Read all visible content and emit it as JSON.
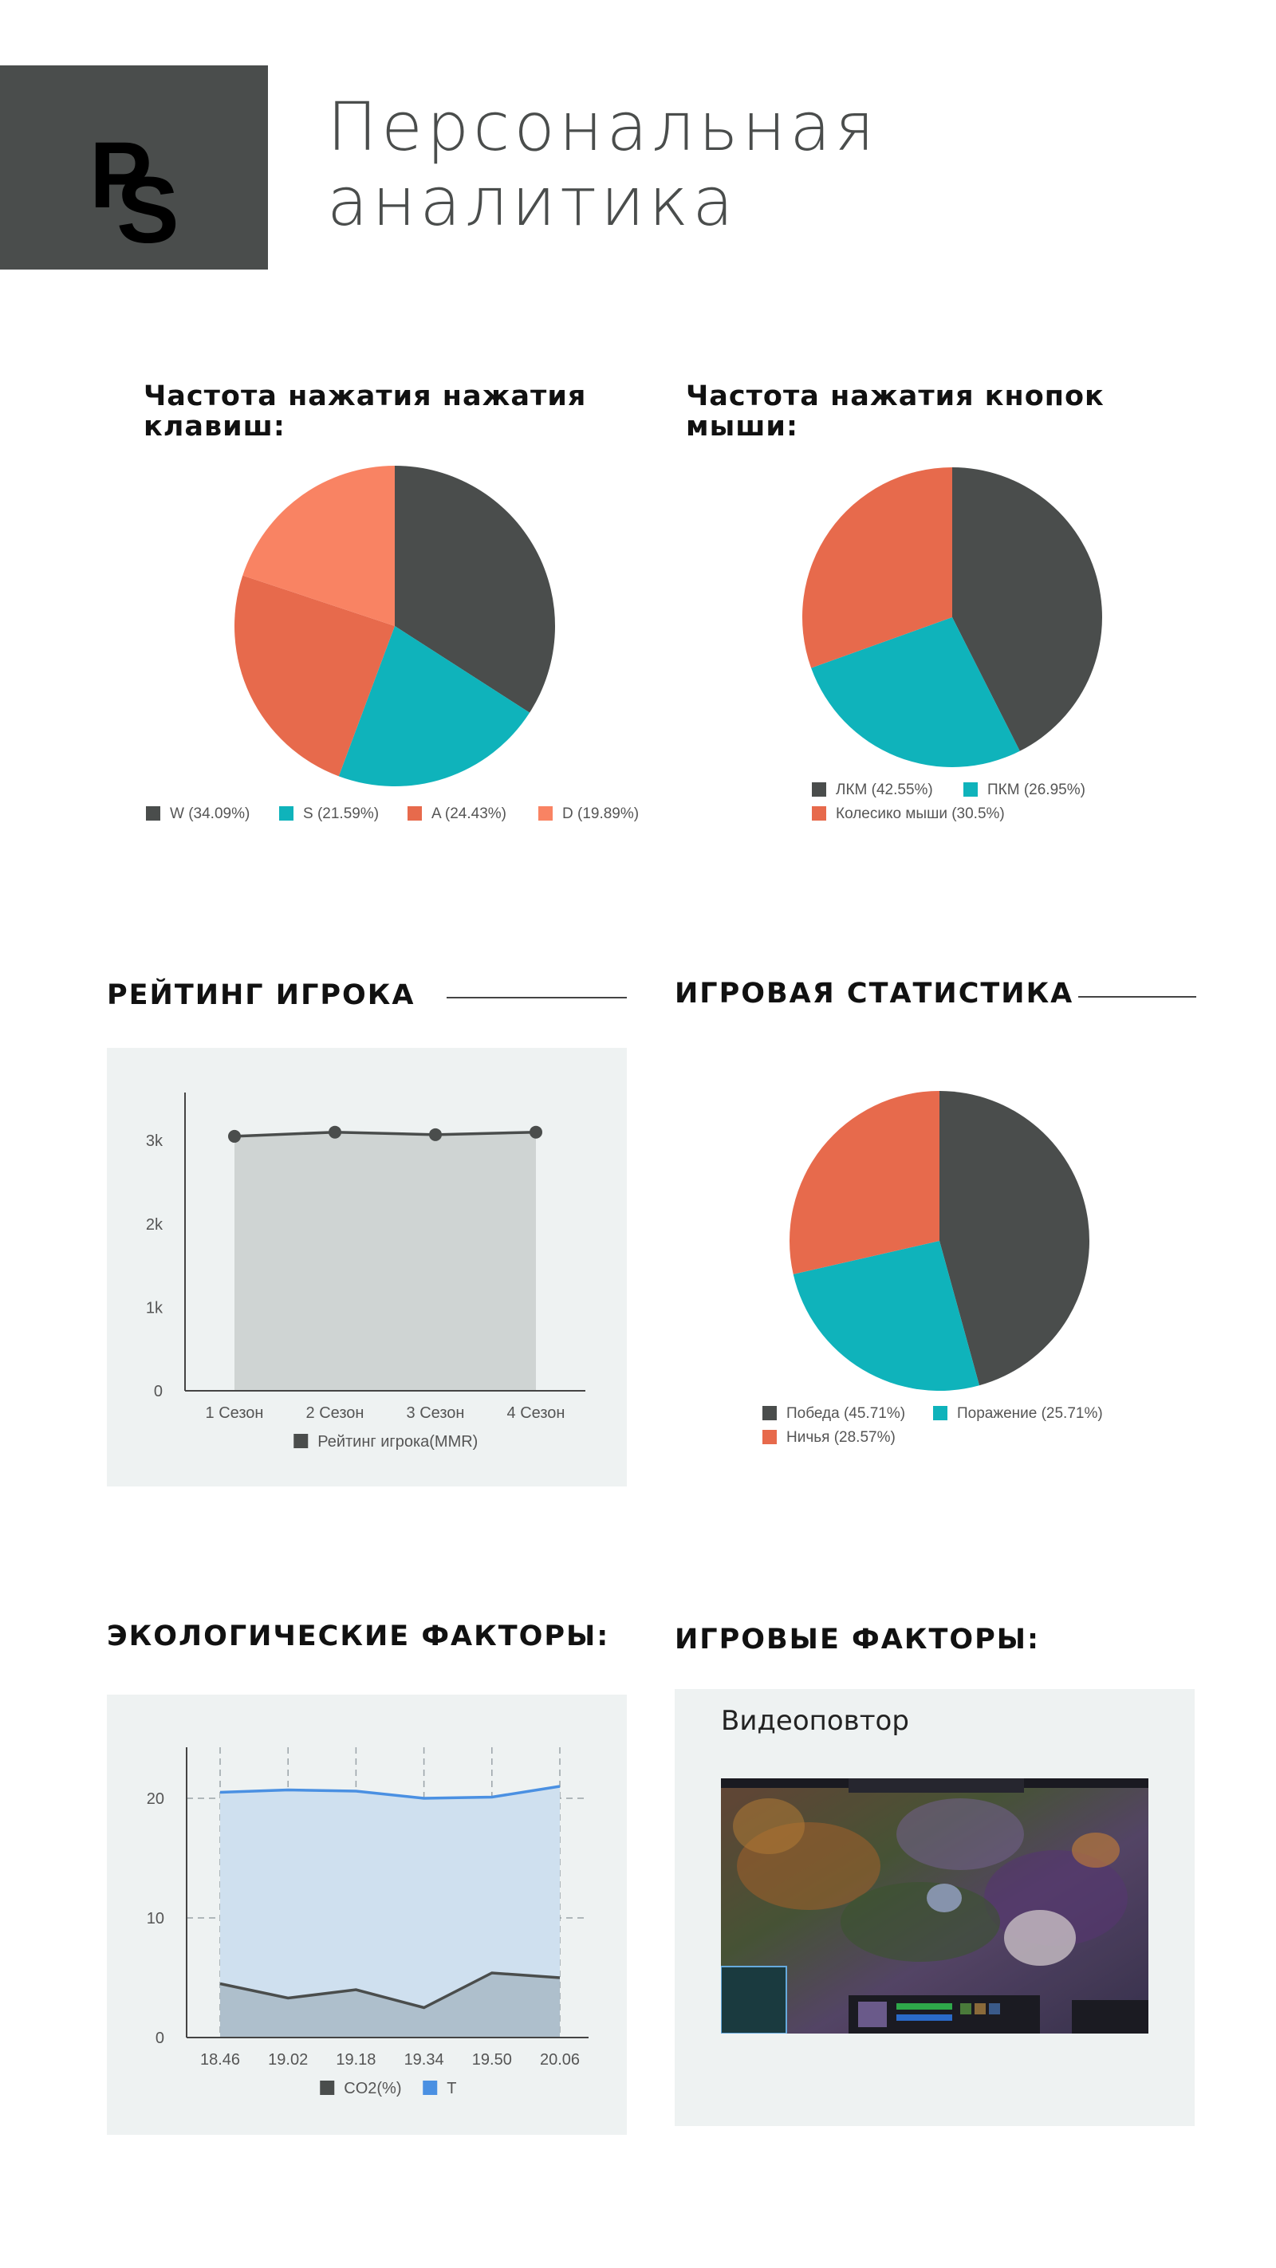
{
  "header": {
    "logo_text": "PS",
    "title_line1": "Персональная",
    "title_line2": "аналитика"
  },
  "colors": {
    "dark": "#4a4d4c",
    "teal": "#0fb3bb",
    "coral": "#e76a4c",
    "salmon": "#f98363",
    "blue": "#4a90e2",
    "panel": "#eef2f2"
  },
  "sections": {
    "player_rating": "РЕЙТИНГ ИГРОКА",
    "game_stats": "ИГРОВАЯ СТАТИСТИКА",
    "eco_factors": "ЭКОЛОГИЧЕСКИЕ ФАКТОРЫ:",
    "game_factors": "ИГРОВЫЕ ФАКТОРЫ:"
  },
  "video": {
    "label": "Видеоповтор",
    "thumbnail_icon": "game-replay-thumbnail"
  },
  "chart_data": [
    {
      "id": "keys",
      "type": "pie",
      "title": "Частота нажатия нажатия клавиш:",
      "title_lines": [
        "Частота нажатия нажатия",
        "клавиш:"
      ],
      "slices": [
        {
          "label": "W (34.09%)",
          "value": 34.09,
          "color": "#4a4d4c"
        },
        {
          "label": "S (21.59%)",
          "value": 21.59,
          "color": "#0fb3bb"
        },
        {
          "label": "A (24.43%)",
          "value": 24.43,
          "color": "#e76a4c"
        },
        {
          "label": "D (19.89%)",
          "value": 19.89,
          "color": "#f98363"
        }
      ],
      "legend_position": "bottom"
    },
    {
      "id": "mouse",
      "type": "pie",
      "title": "Частота нажатия кнопок мыши:",
      "title_lines": [
        "Частота нажатия кнопок",
        "мыши:"
      ],
      "slices": [
        {
          "label": "ЛКМ (42.55%)",
          "value": 42.55,
          "color": "#4a4d4c"
        },
        {
          "label": "ПКМ (26.95%)",
          "value": 26.95,
          "color": "#0fb3bb"
        },
        {
          "label": "Колесико мыши (30.5%)",
          "value": 30.5,
          "color": "#e76a4c"
        }
      ],
      "legend_position": "bottom"
    },
    {
      "id": "rating",
      "type": "area",
      "categories": [
        "1 Сезон",
        "2 Сезон",
        "3 Сезон",
        "4 Сезон"
      ],
      "series": [
        {
          "name": "Рейтинг игрока(MMR)",
          "values": [
            3050,
            3100,
            3070,
            3100
          ],
          "color": "#4a4d4c",
          "fill": "#cfd4d3"
        }
      ],
      "y_ticks": [
        "0",
        "1k",
        "2k",
        "3k"
      ],
      "y_tick_values": [
        0,
        1000,
        2000,
        3000
      ],
      "ylim": [
        0,
        3250
      ],
      "grid": false,
      "legend_position": "bottom"
    },
    {
      "id": "game",
      "type": "pie",
      "slices": [
        {
          "label": "Победа (45.71%)",
          "value": 45.71,
          "color": "#4a4d4c"
        },
        {
          "label": "Поражение (25.71%)",
          "value": 25.71,
          "color": "#0fb3bb"
        },
        {
          "label": "Ничья (28.57%)",
          "value": 28.57,
          "color": "#e76a4c"
        }
      ],
      "legend_position": "bottom"
    },
    {
      "id": "eco",
      "type": "area",
      "categories": [
        "18.46",
        "19.02",
        "19.18",
        "19.34",
        "19.50",
        "20.06"
      ],
      "series": [
        {
          "name": "CO2(%)",
          "values": [
            4.5,
            3.3,
            4.0,
            2.5,
            5.4,
            5.0
          ],
          "color": "#4a4d4c",
          "fill": "#aebfcc"
        },
        {
          "name": "T",
          "values": [
            20.5,
            20.7,
            20.6,
            20.0,
            20.1,
            21.0
          ],
          "color": "#4a90e2",
          "fill": "#cfe0ef"
        }
      ],
      "y_ticks": [
        "0",
        "10",
        "20"
      ],
      "y_tick_values": [
        0,
        10,
        20
      ],
      "ylim": [
        0,
        22
      ],
      "grid": true,
      "legend_position": "bottom"
    }
  ]
}
